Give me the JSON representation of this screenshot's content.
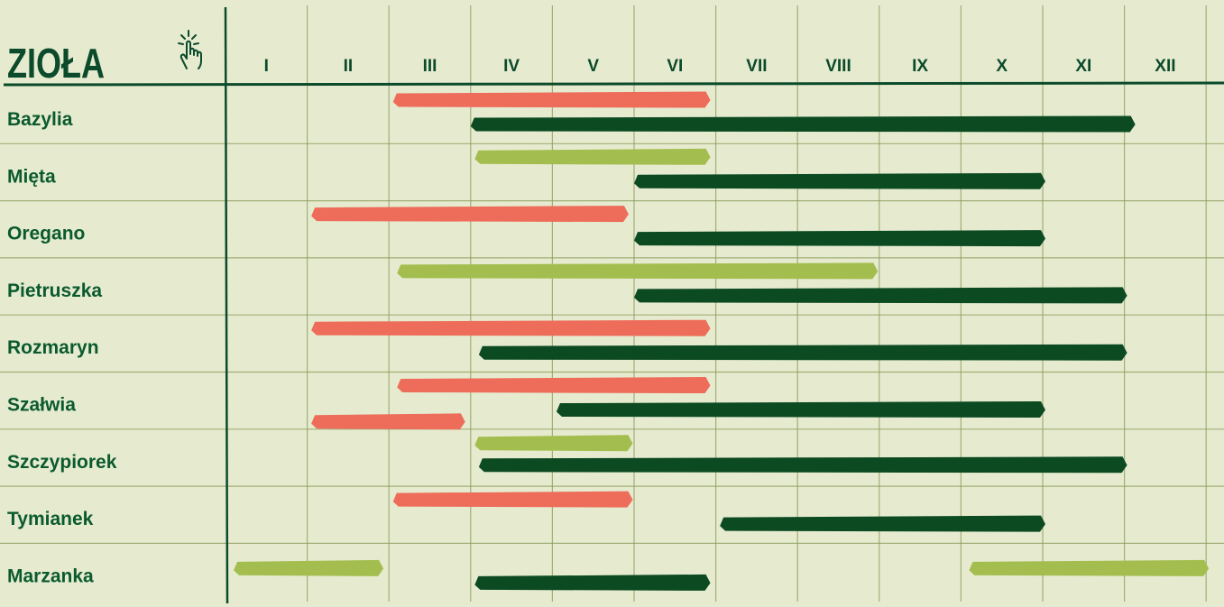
{
  "title": "ZIOŁA",
  "icons": {
    "corner": "hand-tap-icon"
  },
  "colors": {
    "background": "#e6ebcf",
    "grid": "#8a9a5b",
    "ink": "#0b4a2a",
    "label": "#0b5a2e",
    "coral": "#ee6c5a",
    "lime": "#a3be4f",
    "dark": "#0c4a22"
  },
  "chart_data": {
    "type": "table",
    "months": [
      "I",
      "II",
      "III",
      "IV",
      "V",
      "VI",
      "VII",
      "VIII",
      "IX",
      "X",
      "XI",
      "XII"
    ],
    "rows": [
      {
        "herb": "Bazylia",
        "bars": [
          {
            "color": "coral",
            "start": 3.05,
            "end": 6.9
          },
          {
            "color": "dark",
            "start": 4.0,
            "end": 12.1
          }
        ]
      },
      {
        "herb": "Mięta",
        "bars": [
          {
            "color": "lime",
            "start": 4.05,
            "end": 6.9
          },
          {
            "color": "dark",
            "start": 6.0,
            "end": 11.0
          }
        ]
      },
      {
        "herb": "Oregano",
        "bars": [
          {
            "color": "coral",
            "start": 2.05,
            "end": 5.9
          },
          {
            "color": "dark",
            "start": 6.0,
            "end": 11.0
          }
        ]
      },
      {
        "herb": "Pietruszka",
        "bars": [
          {
            "color": "lime",
            "start": 3.1,
            "end": 8.95
          },
          {
            "color": "dark",
            "start": 6.0,
            "end": 12.0
          }
        ]
      },
      {
        "herb": "Rozmaryn",
        "bars": [
          {
            "color": "coral",
            "start": 2.05,
            "end": 6.9
          },
          {
            "color": "dark",
            "start": 4.1,
            "end": 12.0
          }
        ]
      },
      {
        "herb": "Szałwia",
        "bars": [
          {
            "color": "coral",
            "start": 3.1,
            "end": 6.9
          },
          {
            "color": "dark",
            "start": 5.05,
            "end": 11.0
          }
        ]
      },
      {
        "herb": "Szczypiorek",
        "bars": [
          {
            "color": "coral",
            "start": 2.05,
            "end": 3.9
          },
          {
            "color": "lime",
            "start": 4.05,
            "end": 5.95
          },
          {
            "color": "dark",
            "start": 4.1,
            "end": 12.0
          }
        ]
      },
      {
        "herb": "Tymianek",
        "bars": [
          {
            "color": "coral",
            "start": 3.05,
            "end": 5.95
          },
          {
            "color": "dark",
            "start": 7.05,
            "end": 11.0
          }
        ]
      },
      {
        "herb": "Marzanka",
        "bars": [
          {
            "color": "lime",
            "start": 1.1,
            "end": 2.9
          },
          {
            "color": "lime",
            "start": 10.1,
            "end": 13.0
          },
          {
            "color": "dark",
            "start": 4.05,
            "end": 6.9
          }
        ]
      }
    ]
  }
}
